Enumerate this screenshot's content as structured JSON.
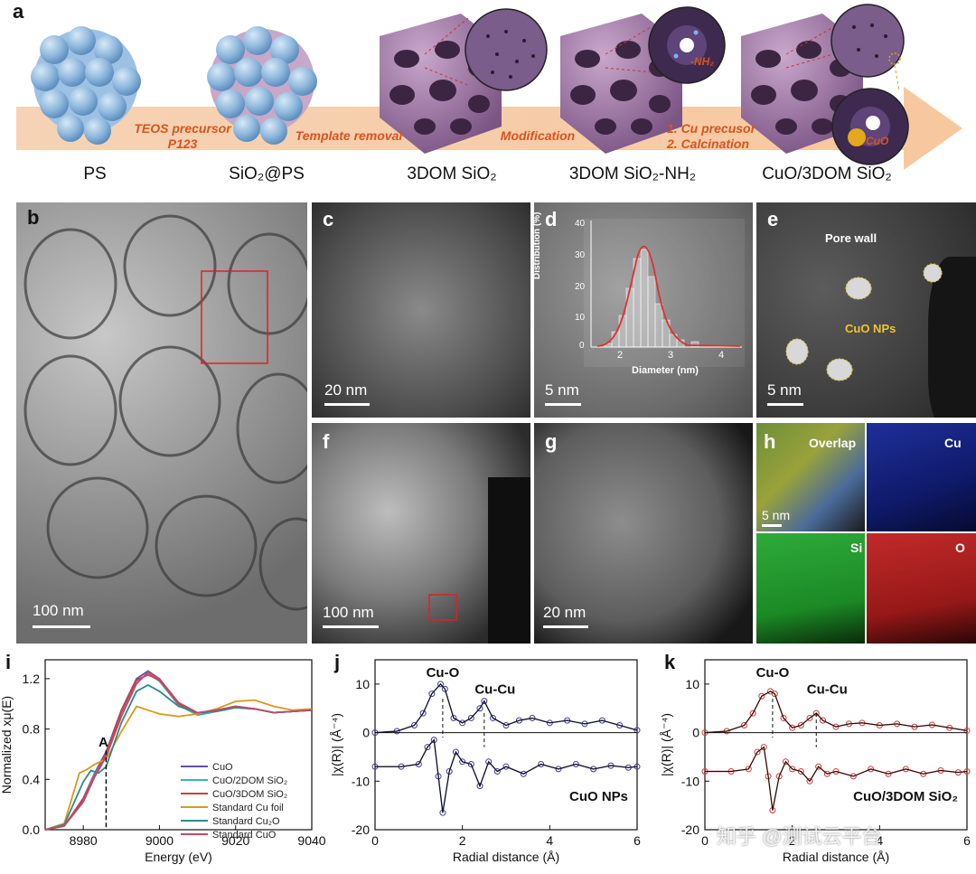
{
  "panel_labels": {
    "a": "a",
    "b": "b",
    "c": "c",
    "d": "d",
    "e": "e",
    "f": "f",
    "g": "g",
    "h": "h",
    "i": "i",
    "j": "j",
    "k": "k"
  },
  "schematic": {
    "steps": [
      "PS",
      "SiO₂@PS",
      "3DOM SiO₂",
      "3DOM SiO₂-NH₂",
      "CuO/3DOM SiO₂"
    ],
    "arrow_labels": [
      "TEOS precursor",
      "P123",
      "Template removal",
      "Modification",
      "1. Cu precusor",
      "2. Calcination"
    ],
    "inset_labels": {
      "nh2": "-NH₂",
      "cuo": "CuO"
    },
    "colors": {
      "arrow": "#f6c9a3",
      "sphere": "#8fb8dd",
      "framework": "#9a6f9f",
      "inset": "#5b3f6a"
    }
  },
  "micrographs": {
    "b": {
      "scale": "100 nm"
    },
    "c": {
      "scale": "20 nm"
    },
    "d": {
      "scale": "5 nm",
      "inset_chart": {
        "type": "bar",
        "xlabel": "Diameter (nm)",
        "ylabel": "Distribution (%)",
        "xticks": [
          "2",
          "3",
          "4"
        ],
        "yticks": [
          "0",
          "10",
          "20",
          "30",
          "40"
        ]
      }
    },
    "e": {
      "scale": "5 nm",
      "label_wall": "Pore wall",
      "label_np": "CuO NPs"
    },
    "f": {
      "scale": "100 nm"
    },
    "g": {
      "scale": "20 nm"
    },
    "h": {
      "scale": "5 nm",
      "maps": [
        "Overlap",
        "Cu",
        "Si",
        "O"
      ]
    }
  },
  "chart_data": [
    {
      "type": "line",
      "panel": "i",
      "xlabel": "Energy (eV)",
      "ylabel": "Normalized xμ(E)",
      "xlim": [
        8970,
        9040
      ],
      "ylim": [
        0,
        1.35
      ],
      "xticks": [
        "8980",
        "9000",
        "9020",
        "9040"
      ],
      "yticks": [
        "0.0",
        "0.4",
        "0.8",
        "1.2"
      ],
      "annotation": "A",
      "annotation_x": 8986,
      "legend_position": "bottom-right",
      "series": [
        {
          "name": "CuO",
          "color": "#6a4ea2",
          "x": [
            8970,
            8975,
            8980,
            8983,
            8986,
            8990,
            8994,
            8997,
            9000,
            9005,
            9010,
            9015,
            9020,
            9025,
            9030,
            9035,
            9040
          ],
          "y": [
            0.0,
            0.03,
            0.25,
            0.45,
            0.62,
            0.95,
            1.2,
            1.26,
            1.2,
            1.0,
            0.92,
            0.95,
            0.98,
            0.96,
            0.93,
            0.94,
            0.95
          ]
        },
        {
          "name": "CuO/2DOM SiO₂",
          "color": "#3ab0c8",
          "x": [
            8970,
            8975,
            8980,
            8983,
            8986,
            8990,
            8994,
            8997,
            9000,
            9005,
            9010,
            9015,
            9020,
            9025,
            9030,
            9035,
            9040
          ],
          "y": [
            0.0,
            0.03,
            0.24,
            0.44,
            0.6,
            0.93,
            1.18,
            1.24,
            1.18,
            0.99,
            0.91,
            0.94,
            0.97,
            0.96,
            0.93,
            0.94,
            0.95
          ]
        },
        {
          "name": "CuO/3DOM SiO₂",
          "color": "#d63c3c",
          "x": [
            8970,
            8975,
            8980,
            8983,
            8986,
            8990,
            8994,
            8997,
            9000,
            9005,
            9010,
            9015,
            9020,
            9025,
            9030,
            9035,
            9040
          ],
          "y": [
            0.0,
            0.03,
            0.24,
            0.43,
            0.6,
            0.94,
            1.19,
            1.23,
            1.19,
            1.0,
            0.92,
            0.95,
            0.97,
            0.96,
            0.93,
            0.94,
            0.95
          ]
        },
        {
          "name": "Standard Cu foil",
          "color": "#d99a1c",
          "x": [
            8970,
            8975,
            8979,
            8981,
            8983,
            8986,
            8990,
            8994,
            8997,
            9000,
            9005,
            9010,
            9015,
            9020,
            9025,
            9030,
            9035,
            9040
          ],
          "y": [
            0.0,
            0.05,
            0.45,
            0.48,
            0.52,
            0.56,
            0.78,
            0.98,
            0.95,
            0.92,
            0.9,
            0.92,
            0.96,
            1.02,
            1.03,
            0.98,
            0.95,
            0.96
          ]
        },
        {
          "name": "Standard Cu₂O",
          "color": "#2e8b8b",
          "x": [
            8970,
            8975,
            8980,
            8982,
            8984,
            8986,
            8990,
            8994,
            8997,
            9000,
            9005,
            9010,
            9015,
            9020,
            9025,
            9030,
            9035,
            9040
          ],
          "y": [
            0.0,
            0.04,
            0.38,
            0.47,
            0.45,
            0.5,
            0.85,
            1.1,
            1.15,
            1.1,
            0.98,
            0.93,
            0.94,
            0.97,
            0.96,
            0.93,
            0.94,
            0.95
          ]
        },
        {
          "name": "Standard CuO",
          "color": "#c04a6e",
          "x": [
            8970,
            8975,
            8980,
            8983,
            8986,
            8990,
            8994,
            8997,
            9000,
            9005,
            9010,
            9015,
            9020,
            9025,
            9030,
            9035,
            9040
          ],
          "y": [
            0.0,
            0.03,
            0.22,
            0.42,
            0.58,
            0.9,
            1.16,
            1.25,
            1.2,
            1.01,
            0.93,
            0.95,
            0.98,
            0.96,
            0.93,
            0.94,
            0.95
          ]
        }
      ]
    },
    {
      "type": "line",
      "panel": "j",
      "xlabel": "Radial distance (Å)",
      "ylabel": "|χ(R)| (Å⁻⁴)",
      "xlim": [
        0,
        6
      ],
      "ylim": [
        -20,
        15
      ],
      "xticks": [
        "0",
        "2",
        "4",
        "6"
      ],
      "yticks": [
        "-20",
        "-10",
        "0",
        "10"
      ],
      "peak_labels": [
        "Cu-O",
        "Cu-Cu"
      ],
      "peak_x": [
        1.55,
        2.5
      ],
      "sample_label": "CuO NPs",
      "series": [
        {
          "name": "magnitude",
          "color": "#3c3c9a",
          "x": [
            0,
            0.5,
            0.9,
            1.1,
            1.3,
            1.5,
            1.6,
            1.8,
            2.0,
            2.2,
            2.4,
            2.5,
            2.7,
            3.0,
            3.3,
            3.6,
            4.0,
            4.4,
            4.8,
            5.2,
            5.6,
            6.0
          ],
          "y": [
            0,
            0.3,
            1.5,
            4,
            8,
            10,
            9,
            3,
            2,
            3,
            5,
            6.5,
            3,
            1.5,
            2.5,
            3,
            2,
            2.5,
            1.8,
            2.5,
            1.5,
            0.5
          ]
        },
        {
          "name": "imaginary",
          "color": "#3c3c9a",
          "x": [
            0,
            0.6,
            1.0,
            1.2,
            1.35,
            1.45,
            1.55,
            1.7,
            1.85,
            2.0,
            2.2,
            2.4,
            2.6,
            2.8,
            3.0,
            3.4,
            3.8,
            4.2,
            4.6,
            5.0,
            5.4,
            5.8,
            6.0
          ],
          "y": [
            -7,
            -7,
            -6.5,
            -3,
            -1.5,
            -9,
            -16.5,
            -8,
            -4,
            -6,
            -6.5,
            -11,
            -6,
            -8,
            -7,
            -8.5,
            -6.5,
            -7.5,
            -6.5,
            -7.5,
            -6.8,
            -7.2,
            -7
          ]
        }
      ]
    },
    {
      "type": "line",
      "panel": "k",
      "xlabel": "Radial distance (Å)",
      "ylabel": "|χ(R)| (Å⁻⁴)",
      "xlim": [
        0,
        6
      ],
      "ylim": [
        -20,
        15
      ],
      "xticks": [
        "0",
        "2",
        "4",
        "6"
      ],
      "yticks": [
        "-20",
        "-10",
        "0",
        "10"
      ],
      "peak_labels": [
        "Cu-O",
        "Cu-Cu"
      ],
      "peak_x": [
        1.55,
        2.55
      ],
      "sample_label": "CuO/3DOM  SiO₂",
      "series": [
        {
          "name": "magnitude",
          "color": "#cc3b34",
          "x": [
            0,
            0.5,
            0.9,
            1.1,
            1.3,
            1.5,
            1.6,
            1.8,
            2.0,
            2.2,
            2.4,
            2.55,
            2.7,
            3.0,
            3.3,
            3.6,
            4.0,
            4.4,
            4.8,
            5.2,
            5.6,
            6.0
          ],
          "y": [
            0,
            0.3,
            1.5,
            4,
            7.5,
            8.5,
            8,
            3,
            1,
            1.5,
            3,
            4,
            2.5,
            1.2,
            1.8,
            2,
            1.5,
            1.8,
            1.2,
            1.6,
            1,
            0.4
          ]
        },
        {
          "name": "imaginary",
          "color": "#cc3b34",
          "x": [
            0,
            0.6,
            1.0,
            1.2,
            1.35,
            1.45,
            1.55,
            1.7,
            1.85,
            2.0,
            2.2,
            2.4,
            2.6,
            2.8,
            3.0,
            3.4,
            3.8,
            4.2,
            4.6,
            5.0,
            5.4,
            5.8,
            6.0
          ],
          "y": [
            -8,
            -8,
            -7.5,
            -4,
            -3,
            -9,
            -16,
            -9,
            -6,
            -7.5,
            -8,
            -10,
            -7,
            -8.5,
            -8,
            -9,
            -7.5,
            -8.5,
            -7.5,
            -8.5,
            -7.8,
            -8.2,
            -8
          ]
        }
      ]
    }
  ],
  "watermark": "知乎 @测试云平台"
}
